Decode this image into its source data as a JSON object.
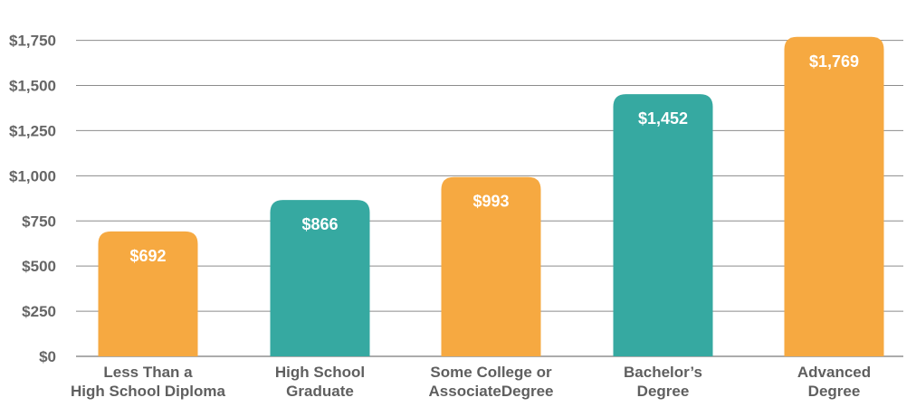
{
  "chart_data": {
    "type": "bar",
    "title": "",
    "xlabel": "",
    "ylabel": "",
    "ylim": [
      0,
      1750
    ],
    "y_ticks": [
      0,
      250,
      500,
      750,
      1000,
      1250,
      1500,
      1750
    ],
    "y_tick_labels": [
      "$0",
      "$250",
      "$500",
      "$750",
      "$1,000",
      "$1,250",
      "$1,500",
      "$1,750"
    ],
    "grid": true,
    "legend": "none",
    "categories": [
      [
        "Less Than a",
        "High School Diploma"
      ],
      [
        "High School",
        "Graduate"
      ],
      [
        "Some College or",
        "AssociateDegree"
      ],
      [
        "Bachelor’s",
        "Degree"
      ],
      [
        "Advanced",
        "Degree"
      ]
    ],
    "values": [
      692,
      866,
      993,
      1452,
      1769
    ],
    "value_labels": [
      "$692",
      "$866",
      "$993",
      "$1,452",
      "$1,769"
    ],
    "bar_colors": [
      "#f6a941",
      "#36a9a1",
      "#f6a941",
      "#36a9a1",
      "#f6a941"
    ]
  }
}
